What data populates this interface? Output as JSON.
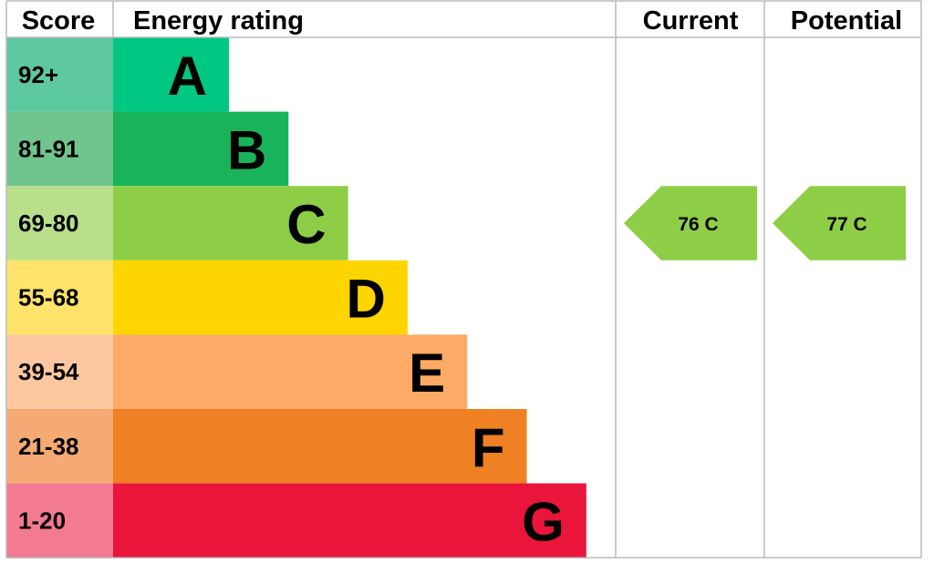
{
  "header": {
    "score": "Score",
    "energy_rating": "Energy rating",
    "current": "Current",
    "potential": "Potential"
  },
  "chart_data": {
    "type": "bar",
    "bands": [
      {
        "letter": "A",
        "range": "92+",
        "bar_color": "#00c781",
        "score_color": "#5ec8a1"
      },
      {
        "letter": "B",
        "range": "81-91",
        "bar_color": "#19b459",
        "score_color": "#70c58c"
      },
      {
        "letter": "C",
        "range": "69-80",
        "bar_color": "#8dce46",
        "score_color": "#b8e08b"
      },
      {
        "letter": "D",
        "range": "55-68",
        "bar_color": "#ffd500",
        "score_color": "#ffe36a"
      },
      {
        "letter": "E",
        "range": "39-54",
        "bar_color": "#fcaa65",
        "score_color": "#fdc8a0"
      },
      {
        "letter": "F",
        "range": "21-38",
        "bar_color": "#ef8023",
        "score_color": "#f4aa72"
      },
      {
        "letter": "G",
        "range": "1-20",
        "bar_color": "#e9153b",
        "score_color": "#f27a92"
      }
    ],
    "current": {
      "value": 76,
      "band": "C",
      "label": "76 C",
      "color": "#8dce46"
    },
    "potential": {
      "value": 77,
      "band": "C",
      "label": "77 C",
      "color": "#8dce46"
    },
    "grid_color": "#bbbbbb"
  }
}
